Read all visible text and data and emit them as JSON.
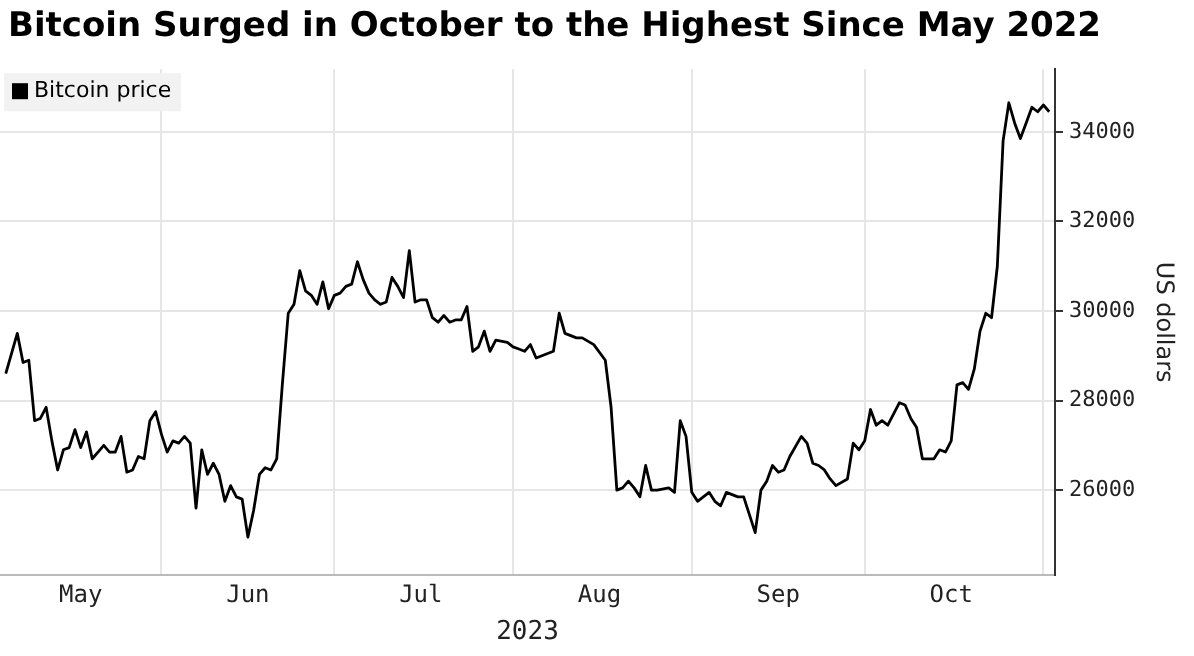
{
  "chart_data": {
    "type": "line",
    "title": "Bitcoin Surged in October to the Highest Since May 2022",
    "xlabel": "2023",
    "ylabel": "US dollars",
    "x": [
      "2023-05-05",
      "2023-05-07",
      "2023-05-08",
      "2023-05-09",
      "2023-05-10",
      "2023-05-11",
      "2023-05-12",
      "2023-05-13",
      "2023-05-14",
      "2023-05-15",
      "2023-05-16",
      "2023-05-17",
      "2023-05-18",
      "2023-05-19",
      "2023-05-20",
      "2023-05-21",
      "2023-05-22",
      "2023-05-23",
      "2023-05-24",
      "2023-05-25",
      "2023-05-26",
      "2023-05-27",
      "2023-05-28",
      "2023-05-29",
      "2023-05-30",
      "2023-05-31",
      "2023-06-01",
      "2023-06-02",
      "2023-06-03",
      "2023-06-04",
      "2023-06-05",
      "2023-06-06",
      "2023-06-07",
      "2023-06-08",
      "2023-06-09",
      "2023-06-10",
      "2023-06-11",
      "2023-06-12",
      "2023-06-13",
      "2023-06-14",
      "2023-06-15",
      "2023-06-16",
      "2023-06-17",
      "2023-06-18",
      "2023-06-19",
      "2023-06-20",
      "2023-06-21",
      "2023-06-22",
      "2023-06-23",
      "2023-06-24",
      "2023-06-25",
      "2023-06-26",
      "2023-06-27",
      "2023-06-28",
      "2023-06-29",
      "2023-06-30",
      "2023-07-01",
      "2023-07-02",
      "2023-07-03",
      "2023-07-04",
      "2023-07-05",
      "2023-07-06",
      "2023-07-07",
      "2023-07-08",
      "2023-07-09",
      "2023-07-10",
      "2023-07-11",
      "2023-07-12",
      "2023-07-13",
      "2023-07-14",
      "2023-07-15",
      "2023-07-16",
      "2023-07-17",
      "2023-07-18",
      "2023-07-19",
      "2023-07-20",
      "2023-07-21",
      "2023-07-22",
      "2023-07-23",
      "2023-07-24",
      "2023-07-25",
      "2023-07-26",
      "2023-07-27",
      "2023-07-28",
      "2023-07-29",
      "2023-07-31",
      "2023-08-01",
      "2023-08-02",
      "2023-08-03",
      "2023-08-04",
      "2023-08-05",
      "2023-08-06",
      "2023-08-08",
      "2023-08-09",
      "2023-08-10",
      "2023-08-12",
      "2023-08-13",
      "2023-08-15",
      "2023-08-17",
      "2023-08-18",
      "2023-08-19",
      "2023-08-20",
      "2023-08-21",
      "2023-08-22",
      "2023-08-23",
      "2023-08-24",
      "2023-08-25",
      "2023-08-26",
      "2023-08-28",
      "2023-08-29",
      "2023-08-30",
      "2023-08-31",
      "2023-09-01",
      "2023-09-02",
      "2023-09-04",
      "2023-09-05",
      "2023-09-06",
      "2023-09-07",
      "2023-09-09",
      "2023-09-10",
      "2023-09-12",
      "2023-09-13",
      "2023-09-14",
      "2023-09-15",
      "2023-09-16",
      "2023-09-17",
      "2023-09-18",
      "2023-09-20",
      "2023-09-21",
      "2023-09-22",
      "2023-09-23",
      "2023-09-24",
      "2023-09-25",
      "2023-09-26",
      "2023-09-28",
      "2023-09-29",
      "2023-09-30",
      "2023-10-01",
      "2023-10-02",
      "2023-10-03",
      "2023-10-04",
      "2023-10-05",
      "2023-10-07",
      "2023-10-08",
      "2023-10-09",
      "2023-10-10",
      "2023-10-11",
      "2023-10-13",
      "2023-10-14",
      "2023-10-15",
      "2023-10-16",
      "2023-10-17",
      "2023-10-18",
      "2023-10-19",
      "2023-10-20",
      "2023-10-21",
      "2023-10-22",
      "2023-10-23",
      "2023-10-24",
      "2023-10-25",
      "2023-10-26",
      "2023-10-27",
      "2023-10-28",
      "2023-10-29",
      "2023-10-30",
      "2023-10-31",
      "2023-11-01",
      "2023-11-02"
    ],
    "series": [
      {
        "name": "Bitcoin price",
        "color": "#000000",
        "values": [
          28600,
          29500,
          28850,
          28900,
          27550,
          27600,
          27850,
          27100,
          26450,
          26900,
          26950,
          27350,
          26950,
          27300,
          26700,
          26850,
          27000,
          26850,
          26850,
          27200,
          26400,
          26450,
          26750,
          26700,
          27550,
          27750,
          27250,
          26850,
          27100,
          27050,
          27200,
          27050,
          25600,
          26900,
          26350,
          26600,
          26350,
          25750,
          26100,
          25850,
          25800,
          24950,
          25550,
          26350,
          26500,
          26450,
          26700,
          28400,
          29950,
          30150,
          30900,
          30450,
          30350,
          30150,
          30650,
          30050,
          30350,
          30400,
          30550,
          30600,
          31100,
          30700,
          30400,
          30250,
          30150,
          30200,
          30750,
          30550,
          30300,
          31350,
          30200,
          30250,
          30250,
          29850,
          29750,
          29900,
          29750,
          29800,
          29800,
          30100,
          29100,
          29200,
          29550,
          29100,
          29350,
          29300,
          29200,
          29150,
          29100,
          29250,
          28950,
          29000,
          29100,
          29950,
          29500,
          29400,
          29400,
          29250,
          28900,
          27850,
          26000,
          26050,
          26200,
          26050,
          25850,
          26550,
          26000,
          26000,
          26050,
          25950,
          27550,
          27200,
          25950,
          25750,
          25950,
          25750,
          25650,
          25950,
          25850,
          25850,
          25050,
          26000,
          26200,
          26550,
          26400,
          26450,
          26750,
          27200,
          27050,
          26600,
          26550,
          26450,
          26250,
          26100,
          26250,
          27050,
          26900,
          27100,
          27800,
          27450,
          27550,
          27450,
          27950,
          27900,
          27600,
          27400,
          26700,
          26700,
          26900,
          26850,
          27100,
          28350,
          28400,
          28250,
          28700,
          29550,
          29950,
          29850,
          31000,
          33800,
          34650,
          34200,
          33850,
          34200,
          34550,
          34450,
          34600,
          34450
        ]
      }
    ],
    "xlim": [
      "2023-05-04",
      "2023-11-03"
    ],
    "xticks": [
      {
        "value": "2023-05-18",
        "label": "May"
      },
      {
        "value": "2023-06-01",
        "label": null
      },
      {
        "value": "2023-06-16",
        "label": "Jun"
      },
      {
        "value": "2023-07-01",
        "label": null
      },
      {
        "value": "2023-07-16",
        "label": "Jul"
      },
      {
        "value": "2023-08-01",
        "label": null
      },
      {
        "value": "2023-08-16",
        "label": "Aug"
      },
      {
        "value": "2023-09-01",
        "label": null
      },
      {
        "value": "2023-09-16",
        "label": "Sep"
      },
      {
        "value": "2023-10-01",
        "label": null
      },
      {
        "value": "2023-10-16",
        "label": "Oct"
      },
      {
        "value": "2023-11-01",
        "label": null
      }
    ],
    "ylim": [
      24100,
      35400
    ],
    "yticks": [
      26000,
      28000,
      30000,
      32000,
      34000
    ],
    "grid": true,
    "legend": "top left",
    "line_style": "solid",
    "marker": "none"
  }
}
